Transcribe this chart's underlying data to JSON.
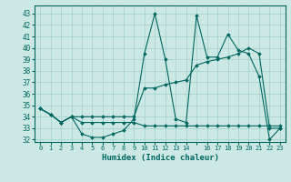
{
  "xlabel": "Humidex (Indice chaleur)",
  "bg_color": "#cce8e4",
  "grid_color": "#aad4ce",
  "line_color": "#006660",
  "xlim": [
    -0.5,
    23.5
  ],
  "ylim": [
    31.8,
    43.7
  ],
  "yticks": [
    32,
    33,
    34,
    35,
    36,
    37,
    38,
    39,
    40,
    41,
    42,
    43
  ],
  "xtick_labels": [
    "0",
    "1",
    "2",
    "3",
    "4",
    "5",
    "6",
    "7",
    "8",
    "9",
    "10",
    "11",
    "12",
    "13",
    "14",
    "",
    "16",
    "17",
    "18",
    "19",
    "20",
    "21",
    "22",
    "23"
  ],
  "series": [
    [
      34.7,
      34.2,
      33.5,
      34.0,
      32.5,
      32.2,
      32.2,
      32.5,
      32.8,
      33.8,
      39.5,
      43.0,
      39.0,
      33.8,
      33.5,
      42.8,
      39.2,
      39.2,
      41.2,
      39.8,
      39.5,
      37.5,
      32.0,
      33.0
    ],
    [
      34.7,
      34.2,
      33.5,
      34.0,
      34.0,
      34.0,
      34.0,
      34.0,
      34.0,
      34.0,
      36.5,
      36.5,
      36.8,
      37.0,
      37.2,
      38.5,
      38.8,
      39.0,
      39.2,
      39.5,
      40.0,
      39.5,
      33.0,
      33.0
    ],
    [
      34.7,
      34.2,
      33.5,
      34.0,
      33.5,
      33.5,
      33.5,
      33.5,
      33.5,
      33.5,
      33.2,
      33.2,
      33.2,
      33.2,
      33.2,
      33.2,
      33.2,
      33.2,
      33.2,
      33.2,
      33.2,
      33.2,
      33.2,
      33.2
    ]
  ]
}
